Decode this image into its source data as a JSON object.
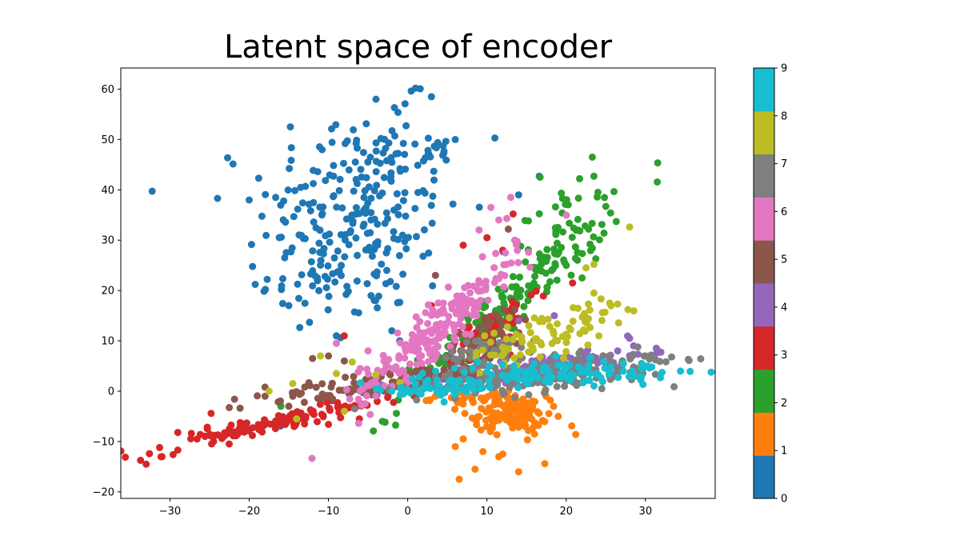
{
  "chart_data": {
    "type": "scatter",
    "title": "Latent space of encoder",
    "xlabel": "",
    "ylabel": "",
    "xlim": [
      -36.2,
      38.8
    ],
    "ylim": [
      -21.3,
      64.2
    ],
    "xticks": [
      -30,
      -20,
      -10,
      0,
      10,
      20,
      30
    ],
    "yticks": [
      -20,
      -10,
      0,
      10,
      20,
      30,
      40,
      50,
      60
    ],
    "grid": false,
    "colorbar": {
      "ticks": [
        0,
        1,
        2,
        3,
        4,
        5,
        6,
        7,
        8,
        9
      ],
      "range": [
        0,
        9
      ],
      "colormap": "tab10"
    },
    "classes": [
      {
        "label": 0,
        "color": "#1f77b4",
        "clusters": [
          {
            "cx": -6,
            "cy": 35,
            "sx": 6.5,
            "sy": 10,
            "rho": 0,
            "n": 210
          },
          {
            "cx": -2,
            "cy": 48,
            "sx": 4,
            "sy": 5,
            "rho": 0,
            "n": 35
          },
          {
            "cx": -11,
            "cy": 22,
            "sx": 4,
            "sy": 6,
            "rho": 0,
            "n": 40
          }
        ],
        "points": [
          [
            1,
            60.2
          ],
          [
            -4,
            58
          ],
          [
            3,
            58.5
          ],
          [
            -14.8,
            52.5
          ],
          [
            11,
            50.3
          ],
          [
            -9.6,
            52.1
          ],
          [
            -24,
            38.3
          ],
          [
            -18.8,
            42.3
          ],
          [
            14,
            39
          ],
          [
            16.6,
            42.7
          ],
          [
            6,
            50
          ],
          [
            -15,
            17
          ],
          [
            -9,
            11
          ],
          [
            -2,
            12
          ],
          [
            -1,
            10
          ]
        ]
      },
      {
        "label": 1,
        "color": "#ff7f0e",
        "clusters": [
          {
            "cx": 13,
            "cy": -4.5,
            "sx": 2.3,
            "sy": 1.8,
            "rho": 0,
            "n": 120
          },
          {
            "cx": 8,
            "cy": -1.5,
            "sx": 2.5,
            "sy": 0.9,
            "rho": 0,
            "n": 30
          }
        ],
        "points": [
          [
            6.5,
            -17.5
          ],
          [
            8.5,
            -15.5
          ],
          [
            14,
            -16
          ],
          [
            11.5,
            -13
          ],
          [
            17.3,
            -14.4
          ],
          [
            6,
            -11
          ],
          [
            9.5,
            -12
          ],
          [
            7,
            -9.5
          ],
          [
            21.2,
            -8.6
          ],
          [
            20.7,
            -6.9
          ],
          [
            19,
            -5
          ],
          [
            16,
            -8.5
          ],
          [
            12,
            -12.5
          ],
          [
            3.5,
            -1
          ],
          [
            18,
            -1.8
          ]
        ]
      },
      {
        "label": 2,
        "color": "#2ca02c",
        "clusters": [
          {
            "cx": 12,
            "cy": 16,
            "sx": 6.5,
            "sy": 9,
            "rho": 0.96,
            "n": 200
          },
          {
            "cx": 19,
            "cy": 32,
            "sx": 2,
            "sy": 5,
            "rho": 0.5,
            "n": 35
          }
        ],
        "points": [
          [
            23.3,
            46.5
          ],
          [
            23.5,
            42.7
          ],
          [
            24,
            39.5
          ],
          [
            25,
            36.7
          ],
          [
            23,
            29.2
          ],
          [
            16.7,
            42.5
          ],
          [
            20,
            25
          ],
          [
            22,
            22.5
          ],
          [
            -16,
            -3
          ]
        ]
      },
      {
        "label": 3,
        "color": "#d62728",
        "clusters": [
          {
            "cx": -17,
            "cy": -6.5,
            "sx": 8,
            "sy": 2.8,
            "rho": 0.95,
            "n": 120
          },
          {
            "cx": 10,
            "cy": 11,
            "sx": 3.2,
            "sy": 4.5,
            "rho": 0.8,
            "n": 65
          }
        ],
        "points": [
          [
            -33,
            -14.5
          ],
          [
            -31,
            -13
          ],
          [
            -31.3,
            -11.2
          ],
          [
            -29,
            -11.7
          ],
          [
            -29,
            -8.2
          ],
          [
            -27.3,
            -8.4
          ],
          [
            -24.8,
            -4.4
          ],
          [
            -10,
            -6.6
          ],
          [
            7,
            29
          ],
          [
            10,
            30.5
          ],
          [
            12,
            28
          ],
          [
            13.3,
            35.2
          ],
          [
            20.8,
            21.5
          ],
          [
            3,
            17
          ],
          [
            -8,
            11
          ]
        ]
      },
      {
        "label": 4,
        "color": "#9467bd",
        "clusters": [
          {
            "cx": 17,
            "cy": 5,
            "sx": 6.5,
            "sy": 1.7,
            "rho": 0.75,
            "n": 130
          }
        ],
        "points": [
          [
            28,
            10.5
          ],
          [
            28.5,
            9
          ],
          [
            26.5,
            8
          ],
          [
            2,
            0.5
          ],
          [
            6,
            1.2
          ],
          [
            8,
            3
          ],
          [
            18.5,
            15
          ],
          [
            14,
            14
          ]
        ]
      },
      {
        "label": 5,
        "color": "#8c564b",
        "clusters": [
          {
            "cx": -3,
            "cy": 1.5,
            "sx": 8,
            "sy": 2.2,
            "rho": 0.85,
            "n": 110
          },
          {
            "cx": 10,
            "cy": 10,
            "sx": 3,
            "sy": 3.5,
            "rho": 0.6,
            "n": 55
          }
        ],
        "points": [
          [
            -12,
            6.5
          ],
          [
            -10,
            7
          ],
          [
            -8,
            6
          ],
          [
            -18,
            -1
          ],
          [
            -18,
            0.8
          ],
          [
            -15,
            -3
          ],
          [
            -14.5,
            -1
          ],
          [
            12.7,
            32.2
          ],
          [
            3.5,
            23
          ]
        ]
      },
      {
        "label": 6,
        "color": "#e377c2",
        "clusters": [
          {
            "cx": 4,
            "cy": 13,
            "sx": 5,
            "sy": 7,
            "rho": 0.93,
            "n": 220
          }
        ],
        "points": [
          [
            13,
            38.5
          ],
          [
            12.5,
            34.3
          ],
          [
            11.5,
            34
          ],
          [
            10.5,
            36.5
          ],
          [
            13.5,
            30
          ],
          [
            9,
            32
          ],
          [
            -9,
            9.5
          ],
          [
            -5,
            8
          ],
          [
            -3,
            6
          ],
          [
            -6,
            4.5
          ]
        ]
      },
      {
        "label": 7,
        "color": "#7f7f7f",
        "clusters": [
          {
            "cx": 17,
            "cy": 3,
            "sx": 8,
            "sy": 2,
            "rho": 0.6,
            "n": 200
          },
          {
            "cx": 10,
            "cy": 8,
            "sx": 3,
            "sy": 2,
            "rho": 0.5,
            "n": 40
          }
        ],
        "points": [
          [
            35.5,
            6.1
          ],
          [
            33.3,
            6.8
          ],
          [
            31.8,
            5.9
          ],
          [
            30.5,
            6.4
          ],
          [
            29.5,
            5.5
          ],
          [
            28.5,
            4.8
          ],
          [
            30,
            7
          ],
          [
            27,
            5.5
          ],
          [
            3.5,
            2.8
          ],
          [
            1,
            1.5
          ]
        ]
      },
      {
        "label": 8,
        "color": "#bcbd22",
        "clusters": [
          {
            "cx": 17,
            "cy": 11,
            "sx": 4.5,
            "sy": 3,
            "rho": 0.65,
            "n": 85
          }
        ],
        "points": [
          [
            28,
            32.6
          ],
          [
            22.5,
            24.5
          ],
          [
            23.5,
            25.2
          ],
          [
            23.5,
            19.5
          ],
          [
            25.5,
            17.5
          ],
          [
            26.5,
            17.3
          ],
          [
            27.8,
            16.2
          ],
          [
            -7,
            5.8
          ],
          [
            -11,
            7
          ],
          [
            -17.5,
            0
          ],
          [
            -14.5,
            1.5
          ],
          [
            -9,
            3.5
          ],
          [
            -4,
            3.3
          ],
          [
            -8,
            -4
          ],
          [
            -1,
            1.7
          ],
          [
            -14,
            -5.5
          ]
        ]
      },
      {
        "label": 9,
        "color": "#17becf",
        "clusters": [
          {
            "cx": 18,
            "cy": 3.5,
            "sx": 8,
            "sy": 1.3,
            "rho": 0.4,
            "n": 120
          },
          {
            "cx": 4,
            "cy": 0.5,
            "sx": 4,
            "sy": 1.2,
            "rho": 0.3,
            "n": 50
          }
        ],
        "points": [
          [
            29.5,
            4.5
          ],
          [
            30.5,
            4.6
          ],
          [
            -2,
            0
          ],
          [
            1,
            0.3
          ]
        ]
      }
    ]
  }
}
